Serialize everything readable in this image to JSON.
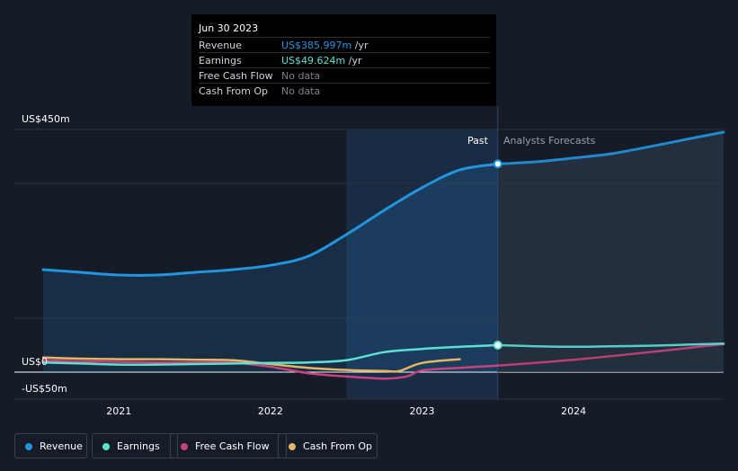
{
  "colors": {
    "background": "#151b27",
    "revenue": "#2394df",
    "earnings": "#5ce1d1",
    "free_cash_flow": "#c8437d",
    "cash_from_op": "#e5b567",
    "grid": "#2b313d"
  },
  "tooltip": {
    "date": "Jun 30 2023",
    "rows": [
      {
        "label": "Revenue",
        "value": "US$385.997m",
        "unit": "/yr",
        "color": "#2394df"
      },
      {
        "label": "Earnings",
        "value": "US$49.624m",
        "unit": "/yr",
        "color": "#5ce1d1"
      },
      {
        "label": "Free Cash Flow",
        "value": "No data",
        "unit": "",
        "color": "#7d828c"
      },
      {
        "label": "Cash From Op",
        "value": "No data",
        "unit": "",
        "color": "#7d828c"
      }
    ]
  },
  "regions": {
    "past_label": "Past",
    "forecast_label": "Analysts Forecasts"
  },
  "legend": [
    {
      "label": "Revenue",
      "color": "#2394df"
    },
    {
      "label": "Earnings",
      "color": "#5ce1d1"
    },
    {
      "label": "Free Cash Flow",
      "color": "#c8437d"
    },
    {
      "label": "Cash From Op",
      "color": "#e5b567"
    }
  ],
  "chart_data": {
    "type": "line",
    "title": "",
    "xlabel": "",
    "ylabel": "",
    "x_range": [
      2020.5,
      2024.99
    ],
    "ylim": [
      -50,
      450
    ],
    "y_tick_labels": [
      "US$450m",
      "US$0",
      "-US$50m"
    ],
    "y_tick_values": [
      450,
      0,
      -50
    ],
    "x_tick_labels": [
      "2021",
      "2022",
      "2023",
      "2024"
    ],
    "x_tick_values": [
      2021,
      2022,
      2023,
      2024
    ],
    "highlight_range": [
      2022.5,
      2023.5
    ],
    "past_forecast_split": 2023.5,
    "series": [
      {
        "name": "Revenue",
        "key": "revenue",
        "past": [
          [
            2020.5,
            190
          ],
          [
            2020.75,
            185
          ],
          [
            2021.0,
            180
          ],
          [
            2021.25,
            180
          ],
          [
            2021.5,
            185
          ],
          [
            2021.75,
            190
          ],
          [
            2022.0,
            198
          ],
          [
            2022.25,
            215
          ],
          [
            2022.5,
            255
          ],
          [
            2022.75,
            300
          ],
          [
            2023.0,
            342
          ],
          [
            2023.25,
            375
          ],
          [
            2023.5,
            386
          ]
        ],
        "forecast": [
          [
            2023.5,
            386
          ],
          [
            2023.75,
            390
          ],
          [
            2024.0,
            397
          ],
          [
            2024.25,
            405
          ],
          [
            2024.5,
            418
          ],
          [
            2024.75,
            432
          ],
          [
            2024.99,
            445
          ]
        ],
        "marker_at": [
          2023.5,
          386
        ]
      },
      {
        "name": "Earnings",
        "key": "earnings",
        "past": [
          [
            2020.5,
            18
          ],
          [
            2020.75,
            16
          ],
          [
            2021.0,
            14
          ],
          [
            2021.25,
            14
          ],
          [
            2021.5,
            15
          ],
          [
            2021.75,
            16
          ],
          [
            2022.0,
            17
          ],
          [
            2022.25,
            18
          ],
          [
            2022.5,
            22
          ],
          [
            2022.75,
            37
          ],
          [
            2023.0,
            43
          ],
          [
            2023.25,
            47
          ],
          [
            2023.5,
            50
          ]
        ],
        "forecast": [
          [
            2023.5,
            50
          ],
          [
            2023.75,
            48
          ],
          [
            2024.0,
            47
          ],
          [
            2024.25,
            48
          ],
          [
            2024.5,
            49
          ],
          [
            2024.75,
            51
          ],
          [
            2024.99,
            53
          ]
        ],
        "marker_at": [
          2023.5,
          50
        ]
      },
      {
        "name": "Free Cash Flow",
        "key": "free_cash_flow",
        "past": [
          [
            2020.5,
            22
          ],
          [
            2020.75,
            20
          ],
          [
            2021.0,
            19
          ],
          [
            2021.25,
            18
          ],
          [
            2021.5,
            18
          ],
          [
            2021.75,
            18
          ],
          [
            2022.0,
            10
          ],
          [
            2022.25,
            -2
          ],
          [
            2022.5,
            -8
          ],
          [
            2022.75,
            -12
          ],
          [
            2022.9,
            -8
          ],
          [
            2023.0,
            3
          ],
          [
            2023.25,
            8
          ],
          [
            2023.5,
            12
          ]
        ],
        "forecast": [
          [
            2023.5,
            12
          ],
          [
            2024.0,
            23
          ],
          [
            2024.5,
            37
          ],
          [
            2024.99,
            52
          ]
        ]
      },
      {
        "name": "Cash From Op",
        "key": "cash_from_op",
        "past": [
          [
            2020.5,
            27
          ],
          [
            2020.75,
            25
          ],
          [
            2021.0,
            24
          ],
          [
            2021.25,
            24
          ],
          [
            2021.5,
            23
          ],
          [
            2021.75,
            22
          ],
          [
            2022.0,
            15
          ],
          [
            2022.25,
            8
          ],
          [
            2022.5,
            4
          ],
          [
            2022.75,
            2
          ],
          [
            2022.85,
            2
          ],
          [
            2023.0,
            17
          ],
          [
            2023.25,
            24
          ]
        ]
      }
    ]
  }
}
